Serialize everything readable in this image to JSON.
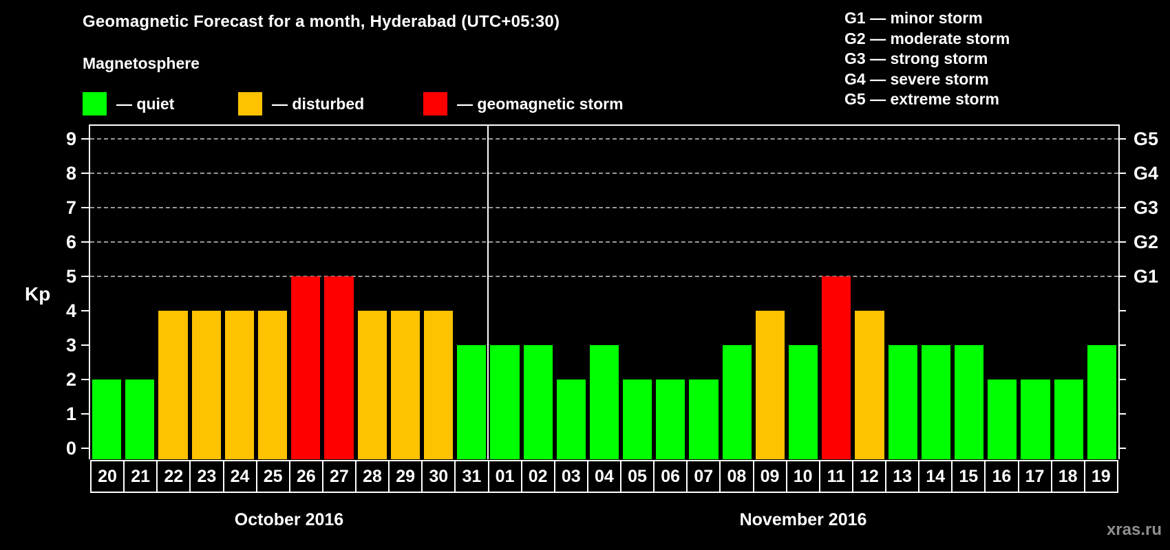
{
  "title": "Geomagnetic Forecast for a month, Hyderabad (UTC+05:30)",
  "legend": {
    "heading": "Magnetosphere",
    "items": [
      {
        "name": "quiet",
        "label": "— quiet",
        "color": "#00ff00"
      },
      {
        "name": "disturbed",
        "label": "— disturbed",
        "color": "#ffc200"
      },
      {
        "name": "geomagnetic-storm",
        "label": "— geomagnetic storm",
        "color": "#ff0000"
      }
    ]
  },
  "g_legend": [
    "G1 — minor storm",
    "G2 — moderate storm",
    "G3 — strong storm",
    "G4 — severe storm",
    "G5 — extreme storm"
  ],
  "watermark": "xras.ru",
  "chart_data": {
    "type": "bar",
    "title": "Geomagnetic Forecast for a month, Hyderabad (UTC+05:30)",
    "ylabel": "Kp",
    "ylim": [
      0,
      9
    ],
    "y_ticks": [
      "0",
      "1",
      "2",
      "3",
      "4",
      "5",
      "6",
      "7",
      "8",
      "9"
    ],
    "grid": "dashed horizontal lines at Kp 5-9 only",
    "right_axis_labels": [
      {
        "kp": 5,
        "label": "G1"
      },
      {
        "kp": 6,
        "label": "G2"
      },
      {
        "kp": 7,
        "label": "G3"
      },
      {
        "kp": 8,
        "label": "G4"
      },
      {
        "kp": 9,
        "label": "G5"
      }
    ],
    "status_colors": {
      "quiet": "#00ff00",
      "disturbed": "#ffc200",
      "storm": "#ff0000"
    },
    "months": [
      {
        "label": "October 2016",
        "days": [
          {
            "day": "20",
            "kp": 2,
            "status": "quiet"
          },
          {
            "day": "21",
            "kp": 2,
            "status": "quiet"
          },
          {
            "day": "22",
            "kp": 4,
            "status": "disturbed"
          },
          {
            "day": "23",
            "kp": 4,
            "status": "disturbed"
          },
          {
            "day": "24",
            "kp": 4,
            "status": "disturbed"
          },
          {
            "day": "25",
            "kp": 4,
            "status": "disturbed"
          },
          {
            "day": "26",
            "kp": 5,
            "status": "storm"
          },
          {
            "day": "27",
            "kp": 5,
            "status": "storm"
          },
          {
            "day": "28",
            "kp": 4,
            "status": "disturbed"
          },
          {
            "day": "29",
            "kp": 4,
            "status": "disturbed"
          },
          {
            "day": "30",
            "kp": 4,
            "status": "disturbed"
          },
          {
            "day": "31",
            "kp": 3,
            "status": "quiet"
          }
        ]
      },
      {
        "label": "November 2016",
        "days": [
          {
            "day": "01",
            "kp": 3,
            "status": "quiet"
          },
          {
            "day": "02",
            "kp": 3,
            "status": "quiet"
          },
          {
            "day": "03",
            "kp": 2,
            "status": "quiet"
          },
          {
            "day": "04",
            "kp": 3,
            "status": "quiet"
          },
          {
            "day": "05",
            "kp": 2,
            "status": "quiet"
          },
          {
            "day": "06",
            "kp": 2,
            "status": "quiet"
          },
          {
            "day": "07",
            "kp": 2,
            "status": "quiet"
          },
          {
            "day": "08",
            "kp": 3,
            "status": "quiet"
          },
          {
            "day": "09",
            "kp": 4,
            "status": "disturbed"
          },
          {
            "day": "10",
            "kp": 3,
            "status": "quiet"
          },
          {
            "day": "11",
            "kp": 5,
            "status": "storm"
          },
          {
            "day": "12",
            "kp": 4,
            "status": "disturbed"
          },
          {
            "day": "13",
            "kp": 3,
            "status": "quiet"
          },
          {
            "day": "14",
            "kp": 3,
            "status": "quiet"
          },
          {
            "day": "15",
            "kp": 3,
            "status": "quiet"
          },
          {
            "day": "16",
            "kp": 2,
            "status": "quiet"
          },
          {
            "day": "17",
            "kp": 2,
            "status": "quiet"
          },
          {
            "day": "18",
            "kp": 2,
            "status": "quiet"
          },
          {
            "day": "19",
            "kp": 3,
            "status": "quiet"
          }
        ]
      }
    ]
  }
}
